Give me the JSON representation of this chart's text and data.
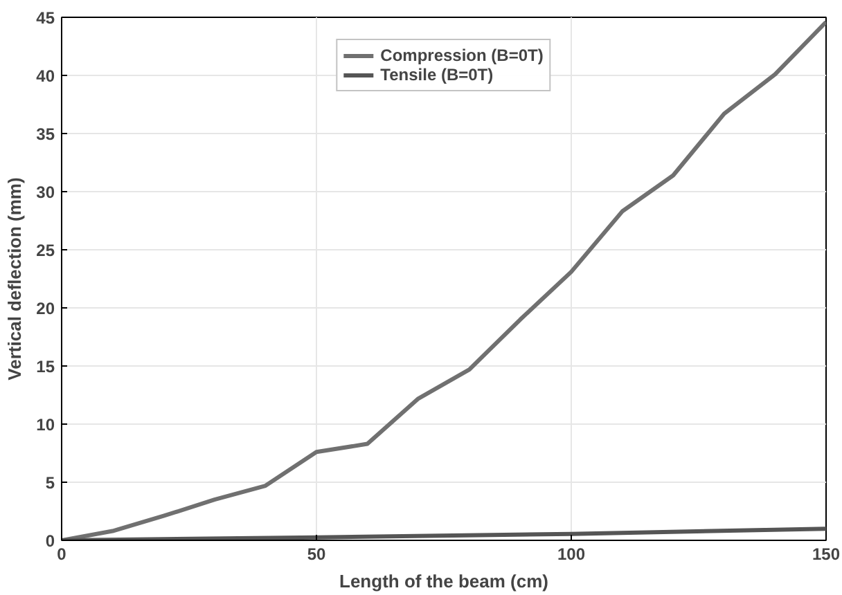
{
  "chart_data": {
    "type": "line",
    "xlabel": "Length of the beam (cm)",
    "ylabel": "Vertical deflection (mm)",
    "xlim": [
      0,
      150
    ],
    "xticks": [
      0,
      50,
      100,
      150
    ],
    "ylim": [
      0,
      45
    ],
    "yticks": [
      0,
      5,
      10,
      15,
      20,
      25,
      30,
      35,
      40,
      45
    ],
    "grid": true,
    "legend": "top",
    "line_style": "solid",
    "marker": "none",
    "series": [
      {
        "name": "Compression (B=0T)",
        "color": "#707070",
        "x": [
          0,
          10,
          20,
          30,
          40,
          50,
          60,
          70,
          80,
          90,
          100,
          110,
          120,
          130,
          140,
          150
        ],
        "values": [
          0,
          0.8,
          2.1,
          3.5,
          4.7,
          7.6,
          8.3,
          12.2,
          14.7,
          19.0,
          23.1,
          28.3,
          31.4,
          36.7,
          40.1,
          44.6
        ]
      },
      {
        "name": "Tensile (B=0T)",
        "color": "#555555",
        "x": [
          0,
          50,
          100,
          150
        ],
        "values": [
          0,
          0.25,
          0.55,
          1.0
        ]
      }
    ]
  }
}
